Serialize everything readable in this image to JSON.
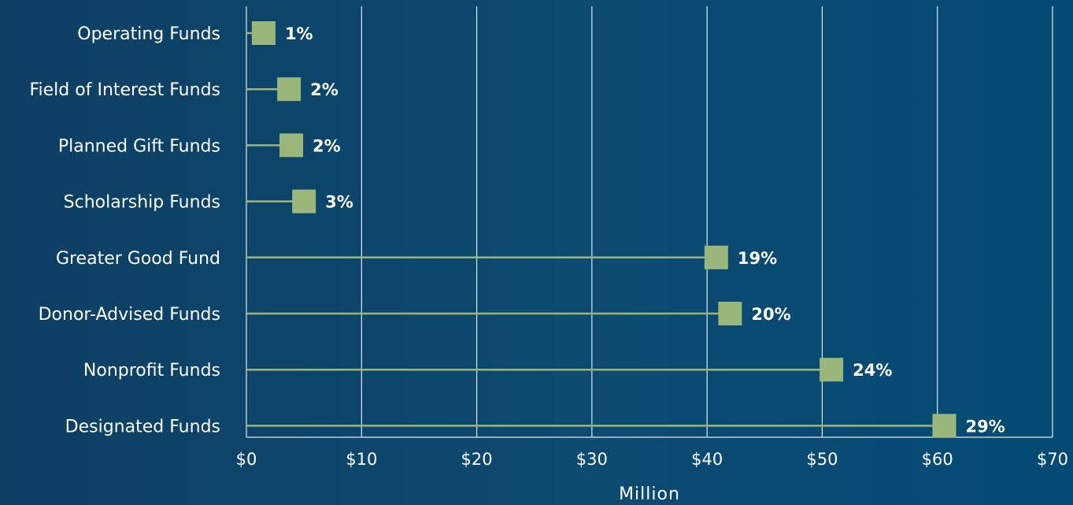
{
  "chart_data": {
    "type": "lollipop",
    "categories": [
      "Operating Funds",
      "Field of Interest Funds",
      "Planned Gift Funds",
      "Scholarship Funds",
      "Greater Good Fund",
      "Donor-Advised Funds",
      "Nonprofit Funds",
      "Designated Funds"
    ],
    "values": [
      1.5,
      3.7,
      3.9,
      5.0,
      40.8,
      42.0,
      50.8,
      60.6
    ],
    "labels": [
      "1%",
      "2%",
      "2%",
      "3%",
      "19%",
      "20%",
      "24%",
      "29%"
    ],
    "xticks": [
      "$0",
      "$10",
      "$20",
      "$30",
      "$40",
      "$50",
      "$60",
      "$70"
    ],
    "xlim": [
      0,
      70
    ],
    "xlabel": "Million",
    "grid": true,
    "colors": {
      "marker": "#9bb67a",
      "stem": "#9bb67a",
      "grid": "#dfe8ee",
      "text": "#ffffff"
    }
  }
}
